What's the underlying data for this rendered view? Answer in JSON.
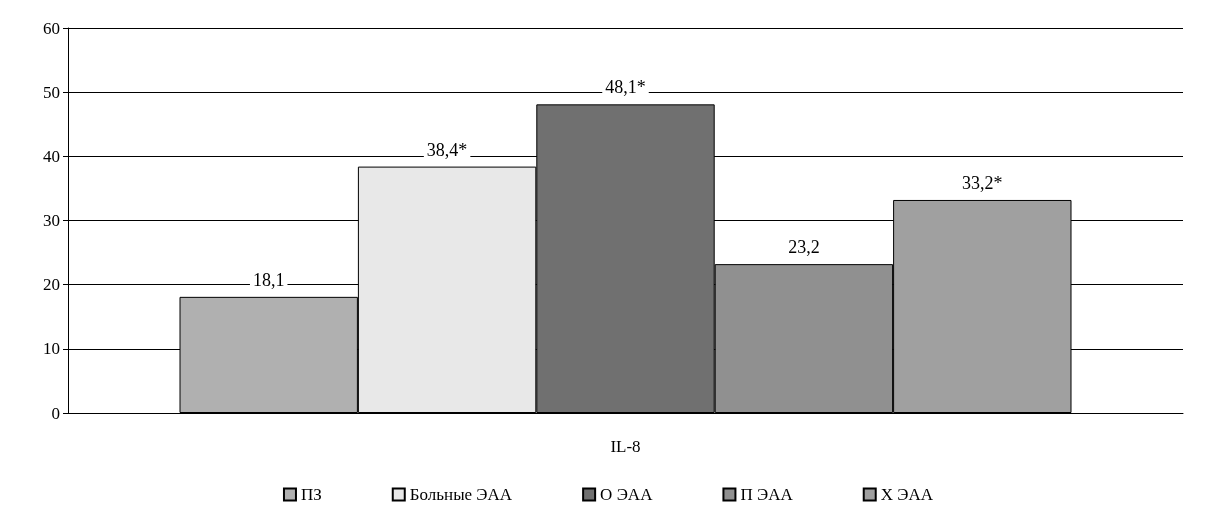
{
  "chart_data": {
    "type": "bar",
    "categories": [
      "IL-8"
    ],
    "series": [
      {
        "name": "ПЗ",
        "color": "#b0b0b0",
        "values": [
          18.1
        ],
        "value_labels": [
          "18,1"
        ]
      },
      {
        "name": "Больные ЭАА",
        "color": "#e8e8e8",
        "values": [
          38.4
        ],
        "value_labels": [
          "38,4*"
        ]
      },
      {
        "name": "О ЭАА",
        "color": "#707070",
        "values": [
          48.1
        ],
        "value_labels": [
          "48,1*"
        ]
      },
      {
        "name": "П ЭАА",
        "color": "#909090",
        "values": [
          23.2
        ],
        "value_labels": [
          "23,2"
        ]
      },
      {
        "name": "Х ЭАА",
        "color": "#a0a0a0",
        "values": [
          33.2
        ],
        "value_labels": [
          "33,2*"
        ]
      }
    ],
    "ylim": [
      0,
      60
    ],
    "yticks": [
      0,
      10,
      20,
      30,
      40,
      50,
      60
    ],
    "grid": "y",
    "legend": "bottom"
  }
}
